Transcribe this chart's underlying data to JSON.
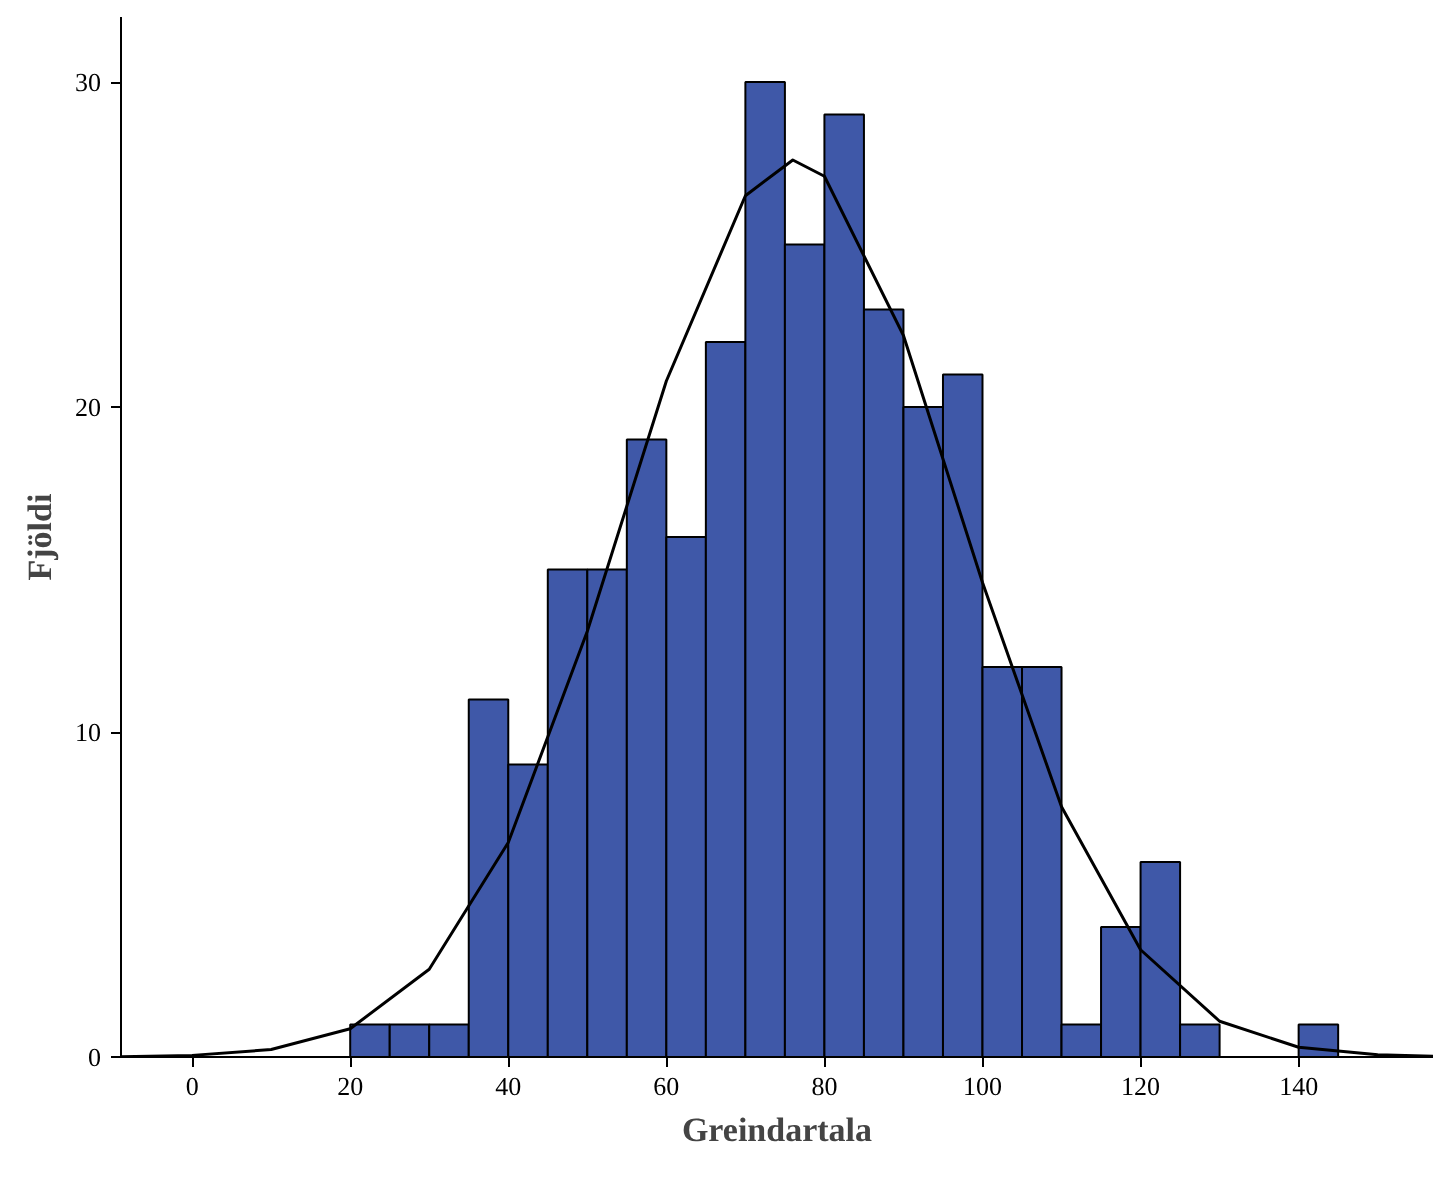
{
  "chart_data": {
    "type": "histogram",
    "xlabel": "Greindartala",
    "ylabel": "Fjöldi",
    "bins": [
      20,
      25,
      30,
      35,
      40,
      45,
      50,
      55,
      60,
      65,
      70,
      75,
      80,
      85,
      90,
      95,
      100,
      105,
      110,
      115,
      120,
      125,
      130,
      135,
      140,
      145
    ],
    "values": [
      1,
      1,
      1,
      11,
      9,
      15,
      15,
      19,
      16,
      22,
      30,
      25,
      29,
      23,
      20,
      21,
      12,
      12,
      1,
      4,
      6,
      1,
      0,
      0,
      1
    ],
    "color": "#3f58a8",
    "series": [
      {
        "type": "line",
        "color": "#000000",
        "x": [
          -9,
          0,
          10,
          20,
          30,
          40,
          50,
          60,
          70,
          76,
          80,
          90,
          100,
          110,
          120,
          130,
          140,
          150,
          157
        ],
        "values": [
          0.01,
          0.05,
          0.23,
          0.87,
          2.7,
          6.6,
          13.1,
          20.8,
          26.5,
          27.6,
          27.1,
          22.2,
          14.6,
          7.7,
          3.3,
          1.1,
          0.3,
          0.07,
          0.02
        ]
      }
    ],
    "xlim": [
      -9,
      157
    ],
    "ylim": [
      0,
      32
    ],
    "xticks": [
      0,
      20,
      40,
      60,
      80,
      100,
      120,
      140
    ],
    "yticks": [
      0,
      10,
      20,
      30
    ],
    "grid": false,
    "line_style": "solid"
  }
}
